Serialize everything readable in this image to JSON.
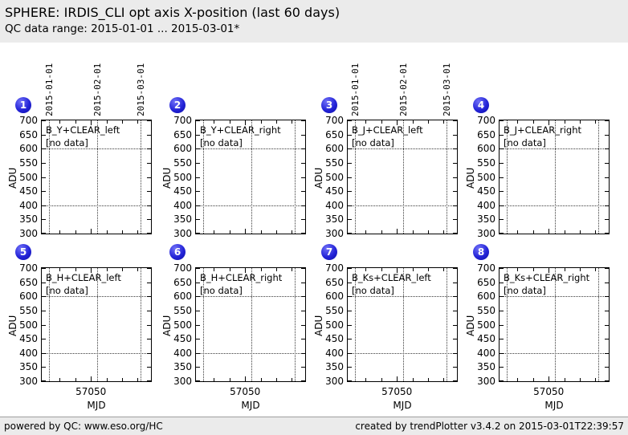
{
  "header": {
    "title": "SPHERE: IRDIS_CLI opt axis X-position (last 60 days)",
    "subtitle": "QC data range: 2015-01-01 ... 2015-03-01*"
  },
  "footer": {
    "left": "powered by QC: www.eso.org/HC",
    "right": "created by trendPlotter v3.4.2 on 2015-03-01T22:39:57"
  },
  "colors": {
    "header_bg": "#ebebeb",
    "footer_bg": "#ebebeb",
    "badge_blue": "#2424d8",
    "plot_border": "#000000",
    "grid_dotted": "#3a3a3a"
  },
  "chart_data": {
    "type": "scatter",
    "title": "SPHERE: IRDIS_CLI opt axis X-position (last 60 days)",
    "xlabel": "MJD",
    "ylabel": "ADU",
    "xlim": [
      57018.5,
      57088.5
    ],
    "ylim": [
      300,
      700
    ],
    "yticks": [
      300,
      350,
      400,
      450,
      500,
      550,
      600,
      650,
      700
    ],
    "x_ticks": [
      57030,
      57040,
      57050,
      57060,
      57070,
      57080
    ],
    "x_major_tick": 57050,
    "x_major_label": "57050",
    "grid_y_values": [
      400,
      600
    ],
    "grid": true,
    "legend_position": "none",
    "date_gridlines": [
      {
        "mjd": 57023,
        "label": "2015-01-01"
      },
      {
        "mjd": 57054,
        "label": "2015-02-01"
      },
      {
        "mjd": 57082,
        "label": "2015-03-01"
      }
    ],
    "panels": [
      {
        "badge": "1",
        "label": "B_Y+CLEAR_left",
        "status": "[no data]",
        "show_top_dates": true,
        "show_x_labels": false,
        "series": []
      },
      {
        "badge": "2",
        "label": "B_Y+CLEAR_right",
        "status": "[no data]",
        "show_top_dates": false,
        "show_x_labels": false,
        "series": []
      },
      {
        "badge": "3",
        "label": "B_J+CLEAR_left",
        "status": "[no data]",
        "show_top_dates": true,
        "show_x_labels": false,
        "series": []
      },
      {
        "badge": "4",
        "label": "B_J+CLEAR_right",
        "status": "[no data]",
        "show_top_dates": false,
        "show_x_labels": false,
        "series": []
      },
      {
        "badge": "5",
        "label": "B_H+CLEAR_left",
        "status": "[no data]",
        "show_top_dates": false,
        "show_x_labels": true,
        "series": []
      },
      {
        "badge": "6",
        "label": "B_H+CLEAR_right",
        "status": "[no data]",
        "show_top_dates": false,
        "show_x_labels": true,
        "series": []
      },
      {
        "badge": "7",
        "label": "B_Ks+CLEAR_left",
        "status": "[no data]",
        "show_top_dates": false,
        "show_x_labels": true,
        "series": []
      },
      {
        "badge": "8",
        "label": "B_Ks+CLEAR_right",
        "status": "[no data]",
        "show_top_dates": false,
        "show_x_labels": true,
        "series": []
      }
    ]
  }
}
